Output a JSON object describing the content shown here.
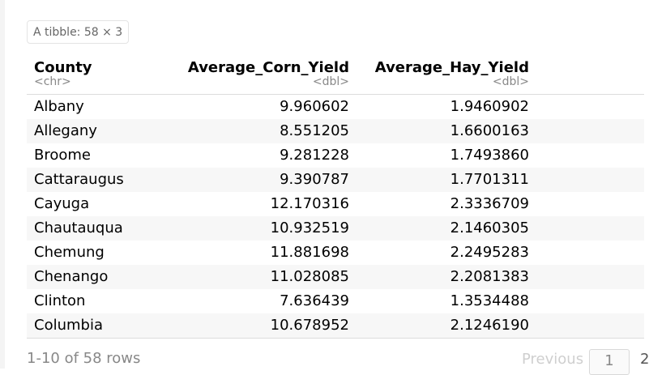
{
  "badge": {
    "prefix": "A tibble:",
    "dims": "58 × 3"
  },
  "columns": [
    {
      "name": "County",
      "type": "<chr>"
    },
    {
      "name": "Average_Corn_Yield",
      "type": "<dbl>"
    },
    {
      "name": "Average_Hay_Yield",
      "type": "<dbl>"
    }
  ],
  "rows": [
    {
      "county": "Albany",
      "corn": "9.960602",
      "hay": "1.9460902"
    },
    {
      "county": "Allegany",
      "corn": "8.551205",
      "hay": "1.6600163"
    },
    {
      "county": "Broome",
      "corn": "9.281228",
      "hay": "1.7493860"
    },
    {
      "county": "Cattaraugus",
      "corn": "9.390787",
      "hay": "1.7701311"
    },
    {
      "county": "Cayuga",
      "corn": "12.170316",
      "hay": "2.3336709"
    },
    {
      "county": "Chautauqua",
      "corn": "10.932519",
      "hay": "2.1460305"
    },
    {
      "county": "Chemung",
      "corn": "11.881698",
      "hay": "2.2495283"
    },
    {
      "county": "Chenango",
      "corn": "11.028085",
      "hay": "2.2081383"
    },
    {
      "county": "Clinton",
      "corn": "7.636439",
      "hay": "1.3534488"
    },
    {
      "county": "Columbia",
      "corn": "10.678952",
      "hay": "2.1246190"
    }
  ],
  "footer": {
    "row_count": "1-10 of 58 rows",
    "previous_label": "Previous",
    "current_page": "1",
    "next_page": "2"
  }
}
